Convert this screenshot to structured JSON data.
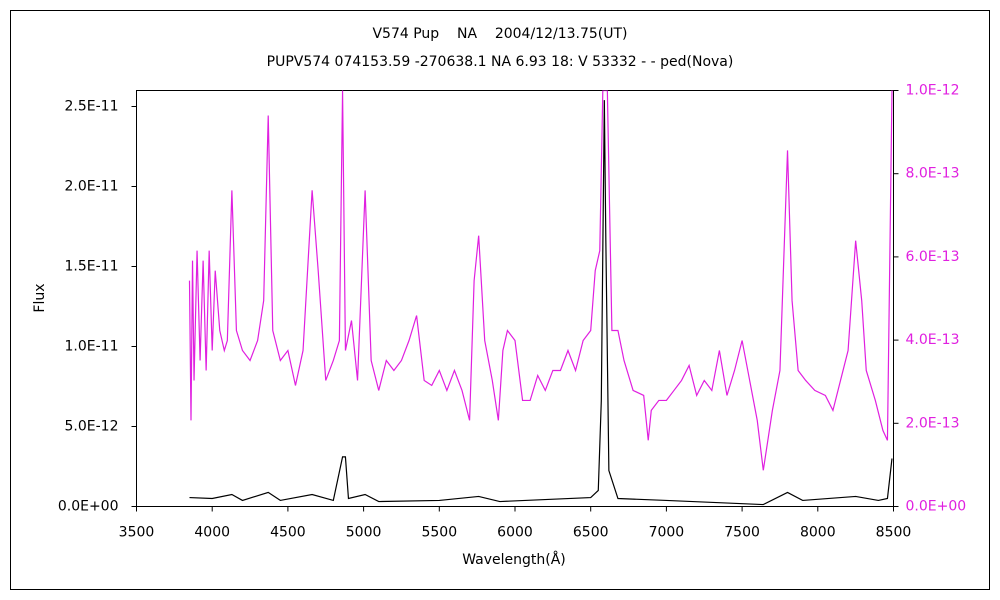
{
  "chart_data": {
    "type": "line",
    "title": "V574 Pup    NA    2004/12/13.75(UT)",
    "subtitle": "PUPV574 074153.59 -270638.1 NA 6.93 18: V 53332 - - ped(Nova)",
    "x_label": "Wavelength(Å)",
    "y_label": "Flux",
    "xlim": [
      3500,
      8500
    ],
    "xticks": [
      3500,
      4000,
      4500,
      5000,
      5500,
      6000,
      6500,
      7000,
      7500,
      8000,
      8500
    ],
    "ylim": [
      0,
      2.6e-11
    ],
    "yticks": [
      {
        "value": 0,
        "label": "0.0E+00"
      },
      {
        "value": 5e-12,
        "label": "5.0E-12"
      },
      {
        "value": 1e-11,
        "label": "1.0E-11"
      },
      {
        "value": 1.5e-11,
        "label": "1.5E-11"
      },
      {
        "value": 2e-11,
        "label": "2.0E-11"
      },
      {
        "value": 2.5e-11,
        "label": "2.5E-11"
      }
    ],
    "y2lim": [
      0,
      1e-12
    ],
    "y2ticks": [
      {
        "value": 0,
        "label": "0.0E+00"
      },
      {
        "value": 2e-13,
        "label": "2.0E-13"
      },
      {
        "value": 4e-13,
        "label": "4.0E-13"
      },
      {
        "value": 6e-13,
        "label": "6.0E-13"
      },
      {
        "value": 8e-13,
        "label": "8.0E-13"
      },
      {
        "value": 1e-12,
        "label": "1.0E-12"
      }
    ],
    "y2color": "#e020e0",
    "series": [
      {
        "color": "#000000",
        "x": [
          3850,
          4000,
          4130,
          4200,
          4370,
          4450,
          4660,
          4800,
          4861,
          4880,
          4900,
          5010,
          5100,
          5500,
          5760,
          5900,
          6500,
          6550,
          6570,
          6590,
          6600,
          6620,
          6680,
          7000,
          7640,
          7800,
          7900,
          8250,
          8400,
          8460,
          8490
        ],
        "values": [
          5.6e-13,
          5e-13,
          7.5e-13,
          3.8e-13,
          8.8e-13,
          3.8e-13,
          7.5e-13,
          3.8e-13,
          3.1e-12,
          3.1e-12,
          5e-13,
          7.5e-13,
          3.1e-13,
          3.8e-13,
          6.3e-13,
          3.1e-13,
          5.6e-13,
          1e-12,
          6.6e-12,
          2.54e-11,
          1.66e-11,
          2.25e-12,
          5e-13,
          3.8e-13,
          1.2e-13,
          8.8e-13,
          3.8e-13,
          6.3e-13,
          3.8e-13,
          5e-13,
          3e-12
        ]
      },
      {
        "color": "#e020e0",
        "axis": "y2",
        "x": [
          3850,
          3860,
          3870,
          3880,
          3900,
          3920,
          3940,
          3960,
          3980,
          4000,
          4020,
          4050,
          4080,
          4100,
          4130,
          4160,
          4200,
          4250,
          4300,
          4340,
          4370,
          4400,
          4450,
          4500,
          4550,
          4600,
          4660,
          4700,
          4750,
          4800,
          4840,
          4861,
          4880,
          4920,
          4960,
          5010,
          5050,
          5100,
          5150,
          5200,
          5250,
          5300,
          5350,
          5400,
          5450,
          5500,
          5550,
          5600,
          5650,
          5700,
          5730,
          5760,
          5800,
          5850,
          5890,
          5920,
          5950,
          6000,
          6050,
          6100,
          6150,
          6200,
          6250,
          6300,
          6350,
          6400,
          6450,
          6500,
          6530,
          6560,
          6580,
          6610,
          6640,
          6680,
          6720,
          6780,
          6850,
          6880,
          6900,
          6950,
          7000,
          7050,
          7100,
          7150,
          7200,
          7250,
          7300,
          7350,
          7400,
          7450,
          7500,
          7550,
          7600,
          7640,
          7700,
          7750,
          7800,
          7830,
          7870,
          7920,
          7980,
          8050,
          8100,
          8150,
          8200,
          8250,
          8290,
          8320,
          8380,
          8430,
          8460,
          8490
        ],
        "values": [
          5.43e-13,
          2.07e-13,
          5.91e-13,
          3.03e-13,
          6.15e-13,
          3.51e-13,
          5.91e-13,
          3.27e-13,
          6.15e-13,
          3.75e-13,
          5.67e-13,
          4.23e-13,
          3.75e-13,
          3.99e-13,
          7.6e-13,
          4.23e-13,
          3.75e-13,
          3.51e-13,
          3.99e-13,
          4.95e-13,
          9.4e-13,
          4.23e-13,
          3.51e-13,
          3.75e-13,
          2.91e-13,
          3.75e-13,
          7.6e-13,
          5.67e-13,
          3.03e-13,
          3.51e-13,
          3.99e-13,
          1e-12,
          3.75e-13,
          4.47e-13,
          3.03e-13,
          7.6e-13,
          3.51e-13,
          2.79e-13,
          3.51e-13,
          3.27e-13,
          3.51e-13,
          3.99e-13,
          4.59e-13,
          3.03e-13,
          2.91e-13,
          3.27e-13,
          2.79e-13,
          3.27e-13,
          2.79e-13,
          2.07e-13,
          5.43e-13,
          6.51e-13,
          3.99e-13,
          3.03e-13,
          2.07e-13,
          3.75e-13,
          4.23e-13,
          3.99e-13,
          2.55e-13,
          2.55e-13,
          3.15e-13,
          2.79e-13,
          3.27e-13,
          3.27e-13,
          3.75e-13,
          3.27e-13,
          3.99e-13,
          4.23e-13,
          5.67e-13,
          6.15e-13,
          1e-12,
          1e-12,
          4.23e-13,
          4.23e-13,
          3.51e-13,
          2.79e-13,
          2.67e-13,
          1.59e-13,
          2.31e-13,
          2.55e-13,
          2.55e-13,
          2.79e-13,
          3.03e-13,
          3.39e-13,
          2.67e-13,
          3.03e-13,
          2.79e-13,
          3.75e-13,
          2.67e-13,
          3.27e-13,
          3.99e-13,
          3.03e-13,
          2.07e-13,
          8.7e-14,
          2.31e-13,
          3.27e-13,
          8.56e-13,
          4.95e-13,
          3.27e-13,
          3.03e-13,
          2.79e-13,
          2.67e-13,
          2.31e-13,
          3.03e-13,
          3.75e-13,
          6.39e-13,
          4.95e-13,
          3.27e-13,
          2.55e-13,
          1.83e-13,
          1.59e-13,
          1e-12
        ]
      }
    ]
  }
}
